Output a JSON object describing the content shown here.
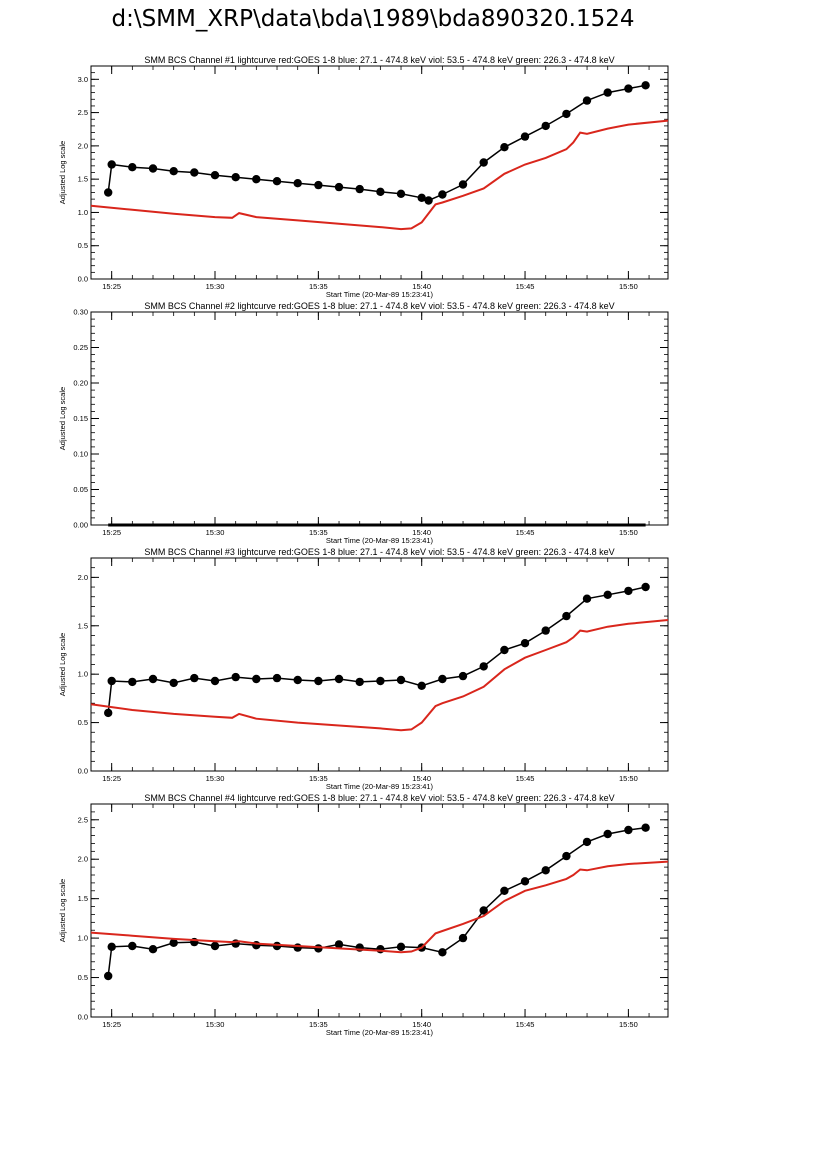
{
  "page": {
    "title": "d:\\SMM_XRP\\data\\bda\\1989\\bda890320.1524"
  },
  "colors": {
    "goes": "#d9261c",
    "bcs": "#000000",
    "axis": "#000000",
    "background": "#ffffff"
  },
  "chart_data": [
    {
      "type": "line",
      "title": "SMM BCS Channel #1 lightcurve  red:GOES 1-8  blue: 27.1 - 474.8 keV  viol: 53.5 - 474.8 keV  green: 226.3 - 474.8 keV",
      "xlabel": "Start Time (20-Mar-89 15:23:41)",
      "ylabel": "Adjusted Log scale",
      "xlim": [
        "15:24",
        "15:51:55"
      ],
      "ylim": [
        0,
        3.2
      ],
      "xticks": [
        "15:25",
        "15:30",
        "15:35",
        "15:40",
        "15:45",
        "15:50"
      ],
      "yticks": [
        "0.0",
        "0.5",
        "1.0",
        "1.5",
        "2.0",
        "2.5",
        "3.0"
      ],
      "grid": false,
      "series": [
        {
          "style": "points",
          "color": "#000000",
          "x": [
            "15:24:50",
            "15:25:00",
            "15:26",
            "15:27",
            "15:28",
            "15:29",
            "15:30",
            "15:31",
            "15:32",
            "15:33",
            "15:34",
            "15:35",
            "15:36",
            "15:37",
            "15:38",
            "15:39",
            "15:40",
            "15:40:20",
            "15:41",
            "15:42",
            "15:43",
            "15:44",
            "15:45",
            "15:46",
            "15:47",
            "15:48",
            "15:49",
            "15:50",
            "15:50:50"
          ],
          "y": [
            1.3,
            1.72,
            1.68,
            1.66,
            1.62,
            1.6,
            1.56,
            1.53,
            1.5,
            1.47,
            1.44,
            1.41,
            1.38,
            1.35,
            1.31,
            1.28,
            1.22,
            1.18,
            1.27,
            1.42,
            1.75,
            1.98,
            2.14,
            2.3,
            2.48,
            2.68,
            2.8,
            2.86,
            2.91
          ]
        },
        {
          "style": "line",
          "color": "#d9261c",
          "x": [
            "15:24",
            "15:26",
            "15:28",
            "15:30",
            "15:30:50",
            "15:31:10",
            "15:32",
            "15:34",
            "15:36",
            "15:38",
            "15:39",
            "15:39:30",
            "15:40",
            "15:40:40",
            "15:41",
            "15:42",
            "15:43",
            "15:44",
            "15:45",
            "15:46",
            "15:47",
            "15:47:20",
            "15:47:40",
            "15:48",
            "15:49",
            "15:50",
            "15:51:55"
          ],
          "y": [
            1.1,
            1.04,
            0.98,
            0.93,
            0.92,
            0.99,
            0.93,
            0.88,
            0.83,
            0.78,
            0.75,
            0.76,
            0.85,
            1.12,
            1.15,
            1.25,
            1.36,
            1.58,
            1.72,
            1.82,
            1.95,
            2.05,
            2.2,
            2.18,
            2.26,
            2.32,
            2.38
          ]
        }
      ]
    },
    {
      "type": "line",
      "title": "SMM BCS Channel #2 lightcurve  red:GOES 1-8  blue: 27.1 - 474.8 keV  viol: 53.5 - 474.8 keV  green: 226.3 - 474.8 keV",
      "xlabel": "Start Time (20-Mar-89 15:23:41)",
      "ylabel": "Adjusted Log scale",
      "xlim": [
        "15:24",
        "15:51:55"
      ],
      "ylim": [
        0,
        0.3
      ],
      "xticks": [
        "15:25",
        "15:30",
        "15:35",
        "15:40",
        "15:45",
        "15:50"
      ],
      "yticks": [
        "0.00",
        "0.05",
        "0.10",
        "0.15",
        "0.20",
        "0.25",
        "0.30"
      ],
      "grid": false,
      "series": [
        {
          "style": "line",
          "color": "#000000",
          "x": [
            "15:24:50",
            "15:50:50"
          ],
          "y": [
            0.0,
            0.0
          ]
        }
      ]
    },
    {
      "type": "line",
      "title": "SMM BCS Channel #3 lightcurve  red:GOES 1-8  blue: 27.1 - 474.8 keV  viol: 53.5 - 474.8 keV  green: 226.3 - 474.8 keV",
      "xlabel": "Start Time (20-Mar-89 15:23:41)",
      "ylabel": "Adjusted Log scale",
      "xlim": [
        "15:24",
        "15:51:55"
      ],
      "ylim": [
        0,
        2.2
      ],
      "xticks": [
        "15:25",
        "15:30",
        "15:35",
        "15:40",
        "15:45",
        "15:50"
      ],
      "yticks": [
        "0.0",
        "0.5",
        "1.0",
        "1.5",
        "2.0"
      ],
      "grid": false,
      "series": [
        {
          "style": "points",
          "color": "#000000",
          "x": [
            "15:24:50",
            "15:25:00",
            "15:26",
            "15:27",
            "15:28",
            "15:29",
            "15:30",
            "15:31",
            "15:32",
            "15:33",
            "15:34",
            "15:35",
            "15:36",
            "15:37",
            "15:38",
            "15:39",
            "15:40",
            "15:41",
            "15:42",
            "15:43",
            "15:44",
            "15:45",
            "15:46",
            "15:47",
            "15:48",
            "15:49",
            "15:50",
            "15:50:50"
          ],
          "y": [
            0.6,
            0.93,
            0.92,
            0.95,
            0.91,
            0.96,
            0.93,
            0.97,
            0.95,
            0.96,
            0.94,
            0.93,
            0.95,
            0.92,
            0.93,
            0.94,
            0.88,
            0.95,
            0.98,
            1.08,
            1.25,
            1.32,
            1.45,
            1.6,
            1.78,
            1.82,
            1.86,
            1.9
          ]
        },
        {
          "style": "line",
          "color": "#d9261c",
          "x": [
            "15:24",
            "15:26",
            "15:28",
            "15:30",
            "15:30:50",
            "15:31:10",
            "15:32",
            "15:34",
            "15:36",
            "15:38",
            "15:39",
            "15:39:30",
            "15:40",
            "15:40:40",
            "15:41",
            "15:42",
            "15:43",
            "15:44",
            "15:45",
            "15:46",
            "15:47",
            "15:47:20",
            "15:47:40",
            "15:48",
            "15:49",
            "15:50",
            "15:51:55"
          ],
          "y": [
            0.69,
            0.63,
            0.59,
            0.56,
            0.55,
            0.59,
            0.54,
            0.5,
            0.47,
            0.44,
            0.42,
            0.43,
            0.5,
            0.67,
            0.7,
            0.77,
            0.87,
            1.05,
            1.17,
            1.25,
            1.33,
            1.38,
            1.45,
            1.44,
            1.49,
            1.52,
            1.56
          ]
        }
      ]
    },
    {
      "type": "line",
      "title": "SMM BCS Channel #4 lightcurve  red:GOES 1-8  blue: 27.1 - 474.8 keV  viol: 53.5 - 474.8 keV  green: 226.3 - 474.8 keV",
      "xlabel": "Start Time (20-Mar-89 15:23:41)",
      "ylabel": "Adjusted Log scale",
      "xlim": [
        "15:24",
        "15:51:55"
      ],
      "ylim": [
        0,
        2.7
      ],
      "xticks": [
        "15:25",
        "15:30",
        "15:35",
        "15:40",
        "15:45",
        "15:50"
      ],
      "yticks": [
        "0.0",
        "0.5",
        "1.0",
        "1.5",
        "2.0",
        "2.5"
      ],
      "grid": false,
      "series": [
        {
          "style": "points",
          "color": "#000000",
          "x": [
            "15:24:50",
            "15:25:00",
            "15:26",
            "15:27",
            "15:28",
            "15:29",
            "15:30",
            "15:31",
            "15:32",
            "15:33",
            "15:34",
            "15:35",
            "15:36",
            "15:37",
            "15:38",
            "15:39",
            "15:40",
            "15:41",
            "15:42",
            "15:43",
            "15:44",
            "15:45",
            "15:46",
            "15:47",
            "15:48",
            "15:49",
            "15:50",
            "15:50:50"
          ],
          "y": [
            0.52,
            0.89,
            0.9,
            0.86,
            0.94,
            0.95,
            0.9,
            0.93,
            0.91,
            0.9,
            0.88,
            0.87,
            0.92,
            0.88,
            0.86,
            0.89,
            0.88,
            0.82,
            1.0,
            1.35,
            1.6,
            1.72,
            1.86,
            2.04,
            2.22,
            2.32,
            2.37,
            2.4
          ]
        },
        {
          "style": "line",
          "color": "#d9261c",
          "x": [
            "15:24",
            "15:26",
            "15:28",
            "15:30",
            "15:30:50",
            "15:31:10",
            "15:32",
            "15:34",
            "15:36",
            "15:38",
            "15:39",
            "15:39:30",
            "15:40",
            "15:40:40",
            "15:41",
            "15:42",
            "15:43",
            "15:44",
            "15:45",
            "15:46",
            "15:47",
            "15:47:20",
            "15:47:40",
            "15:48",
            "15:49",
            "15:50",
            "15:51:55"
          ],
          "y": [
            1.07,
            1.03,
            0.99,
            0.96,
            0.95,
            0.96,
            0.93,
            0.9,
            0.87,
            0.84,
            0.82,
            0.83,
            0.88,
            1.06,
            1.09,
            1.18,
            1.28,
            1.47,
            1.6,
            1.67,
            1.75,
            1.8,
            1.87,
            1.86,
            1.91,
            1.94,
            1.97
          ]
        }
      ]
    }
  ]
}
